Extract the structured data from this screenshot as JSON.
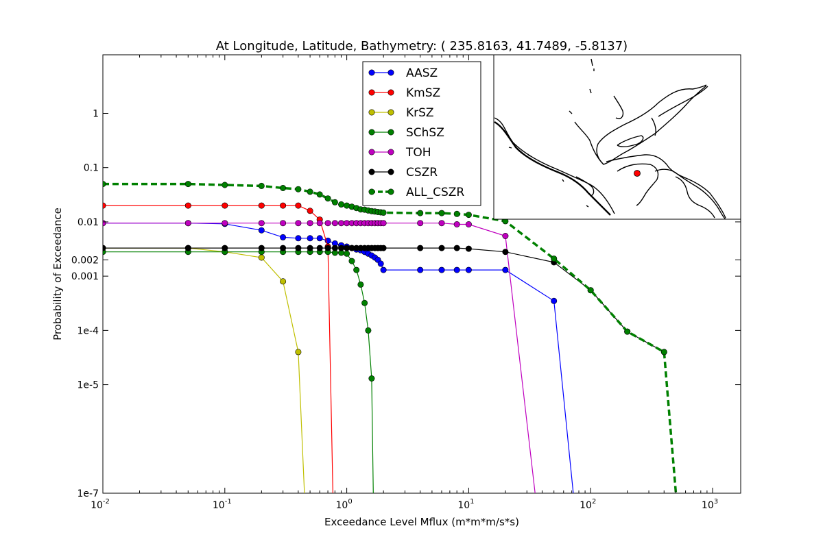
{
  "chart_data": {
    "type": "line",
    "title": "At Longitude, Latitude, Bathymetry:  ( 235.8163,  41.7489,  -5.8137)",
    "xlabel": "Exceedance Level Mflux (m*m*m/s*s)",
    "ylabel": "Probability of Exceedance",
    "xscale": "log",
    "yscale": "log",
    "xlim": [
      0.01,
      1700
    ],
    "ylim": [
      1e-07,
      12
    ],
    "x_ticks": [
      {
        "value": 0.01,
        "base": "10",
        "exp": "-2"
      },
      {
        "value": 0.1,
        "base": "10",
        "exp": "-1"
      },
      {
        "value": 1,
        "base": "10",
        "exp": "0"
      },
      {
        "value": 10,
        "base": "10",
        "exp": "1"
      },
      {
        "value": 100,
        "base": "10",
        "exp": "2"
      },
      {
        "value": 1000,
        "base": "10",
        "exp": "3"
      }
    ],
    "y_ticks": [
      {
        "value": 1e-07,
        "label": "1e-7"
      },
      {
        "value": 1e-05,
        "label": "1e-5"
      },
      {
        "value": 0.0001,
        "label": "1e-4"
      },
      {
        "value": 0.001,
        "label": "0.001"
      },
      {
        "value": 0.002,
        "label": "0.002"
      },
      {
        "value": 0.01,
        "label": "0.01"
      },
      {
        "value": 0.1,
        "label": "0.1"
      },
      {
        "value": 1,
        "label": "1"
      }
    ],
    "grid": false,
    "legend_position": "top-center",
    "series": [
      {
        "name": "AASZ",
        "color": "#0000ff",
        "dashed": false,
        "points": [
          [
            0.01,
            0.0095
          ],
          [
            0.05,
            0.0095
          ],
          [
            0.1,
            0.0092
          ],
          [
            0.2,
            0.007
          ],
          [
            0.3,
            0.0052
          ],
          [
            0.4,
            0.005
          ],
          [
            0.5,
            0.005
          ],
          [
            0.6,
            0.005
          ],
          [
            0.7,
            0.0045
          ],
          [
            0.8,
            0.004
          ],
          [
            0.9,
            0.0037
          ],
          [
            1.0,
            0.0035
          ],
          [
            1.1,
            0.0033
          ],
          [
            1.2,
            0.0031
          ],
          [
            1.3,
            0.003
          ],
          [
            1.4,
            0.0028
          ],
          [
            1.5,
            0.0026
          ],
          [
            1.6,
            0.0024
          ],
          [
            1.7,
            0.0022
          ],
          [
            1.8,
            0.002
          ],
          [
            1.9,
            0.0017
          ],
          [
            2,
            0.0013
          ],
          [
            4,
            0.0013
          ],
          [
            6,
            0.0013
          ],
          [
            8,
            0.0013
          ],
          [
            10,
            0.0013
          ],
          [
            20,
            0.0013
          ],
          [
            50,
            0.00035
          ],
          [
            72,
            1e-07
          ]
        ]
      },
      {
        "name": "KmSZ",
        "color": "#ff0000",
        "dashed": false,
        "points": [
          [
            0.01,
            0.02
          ],
          [
            0.05,
            0.02
          ],
          [
            0.1,
            0.02
          ],
          [
            0.2,
            0.02
          ],
          [
            0.3,
            0.02
          ],
          [
            0.4,
            0.02
          ],
          [
            0.5,
            0.016
          ],
          [
            0.6,
            0.011
          ],
          [
            0.7,
            0.0035
          ],
          [
            0.77,
            1e-07
          ]
        ]
      },
      {
        "name": "KrSZ",
        "color": "#bfbf00",
        "dashed": false,
        "points": [
          [
            0.01,
            0.0033
          ],
          [
            0.05,
            0.0033
          ],
          [
            0.1,
            0.0028
          ],
          [
            0.2,
            0.0022
          ],
          [
            0.3,
            0.0008
          ],
          [
            0.4,
            4e-05
          ],
          [
            0.45,
            1e-07
          ]
        ]
      },
      {
        "name": "SChSZ",
        "color": "#008000",
        "dashed": false,
        "points": [
          [
            0.01,
            0.0028
          ],
          [
            0.05,
            0.0028
          ],
          [
            0.1,
            0.0028
          ],
          [
            0.2,
            0.0028
          ],
          [
            0.3,
            0.0028
          ],
          [
            0.4,
            0.0028
          ],
          [
            0.5,
            0.0028
          ],
          [
            0.6,
            0.0028
          ],
          [
            0.7,
            0.0028
          ],
          [
            0.8,
            0.0027
          ],
          [
            0.9,
            0.0027
          ],
          [
            1.0,
            0.0026
          ],
          [
            1.1,
            0.0019
          ],
          [
            1.2,
            0.0013
          ],
          [
            1.3,
            0.0007
          ],
          [
            1.4,
            0.00032
          ],
          [
            1.5,
            0.0001
          ],
          [
            1.6,
            1.3e-05
          ],
          [
            1.65,
            1e-07
          ]
        ]
      },
      {
        "name": "TOH",
        "color": "#bf00bf",
        "dashed": false,
        "points": [
          [
            0.01,
            0.0095
          ],
          [
            0.05,
            0.0095
          ],
          [
            0.1,
            0.0095
          ],
          [
            0.2,
            0.0095
          ],
          [
            0.3,
            0.0095
          ],
          [
            0.4,
            0.0095
          ],
          [
            0.5,
            0.0095
          ],
          [
            0.6,
            0.0095
          ],
          [
            0.7,
            0.0095
          ],
          [
            0.8,
            0.0095
          ],
          [
            0.9,
            0.0095
          ],
          [
            1.0,
            0.0095
          ],
          [
            1.1,
            0.0095
          ],
          [
            1.2,
            0.0095
          ],
          [
            1.3,
            0.0095
          ],
          [
            1.4,
            0.0095
          ],
          [
            1.5,
            0.0095
          ],
          [
            1.6,
            0.0095
          ],
          [
            1.7,
            0.0095
          ],
          [
            1.8,
            0.0095
          ],
          [
            1.9,
            0.0095
          ],
          [
            2,
            0.0095
          ],
          [
            4,
            0.0095
          ],
          [
            6,
            0.0095
          ],
          [
            8,
            0.009
          ],
          [
            10,
            0.009
          ],
          [
            20,
            0.0055
          ],
          [
            35,
            1e-07
          ]
        ]
      },
      {
        "name": "CSZR",
        "color": "#000000",
        "dashed": false,
        "points": [
          [
            0.01,
            0.0033
          ],
          [
            0.05,
            0.0033
          ],
          [
            0.1,
            0.0033
          ],
          [
            0.2,
            0.0033
          ],
          [
            0.3,
            0.0033
          ],
          [
            0.4,
            0.0033
          ],
          [
            0.5,
            0.0033
          ],
          [
            0.6,
            0.0033
          ],
          [
            0.7,
            0.0033
          ],
          [
            0.8,
            0.0033
          ],
          [
            0.9,
            0.0033
          ],
          [
            1.0,
            0.0033
          ],
          [
            1.1,
            0.0033
          ],
          [
            1.2,
            0.0033
          ],
          [
            1.3,
            0.0033
          ],
          [
            1.4,
            0.0033
          ],
          [
            1.5,
            0.0033
          ],
          [
            1.6,
            0.0033
          ],
          [
            1.7,
            0.0033
          ],
          [
            1.8,
            0.0033
          ],
          [
            1.9,
            0.0033
          ],
          [
            2,
            0.0033
          ],
          [
            4,
            0.0033
          ],
          [
            6,
            0.0033
          ],
          [
            8,
            0.0033
          ],
          [
            10,
            0.0032
          ],
          [
            20,
            0.0028
          ],
          [
            50,
            0.0018
          ],
          [
            100,
            0.00055
          ],
          [
            200,
            9.5e-05
          ],
          [
            400,
            4e-05
          ]
        ]
      },
      {
        "name": "ALL_CSZR",
        "color": "#008000",
        "dashed": true,
        "points": [
          [
            0.01,
            0.05
          ],
          [
            0.05,
            0.05
          ],
          [
            0.1,
            0.048
          ],
          [
            0.2,
            0.046
          ],
          [
            0.3,
            0.042
          ],
          [
            0.4,
            0.04
          ],
          [
            0.5,
            0.036
          ],
          [
            0.6,
            0.032
          ],
          [
            0.7,
            0.027
          ],
          [
            0.8,
            0.023
          ],
          [
            0.9,
            0.021
          ],
          [
            1.0,
            0.02
          ],
          [
            1.1,
            0.019
          ],
          [
            1.2,
            0.018
          ],
          [
            1.3,
            0.017
          ],
          [
            1.4,
            0.0168
          ],
          [
            1.5,
            0.0162
          ],
          [
            1.6,
            0.0158
          ],
          [
            1.7,
            0.0155
          ],
          [
            1.8,
            0.0152
          ],
          [
            1.9,
            0.015
          ],
          [
            2,
            0.0148
          ],
          [
            4,
            0.0145
          ],
          [
            6,
            0.0145
          ],
          [
            8,
            0.014
          ],
          [
            10,
            0.0135
          ],
          [
            20,
            0.0103
          ],
          [
            50,
            0.0021
          ],
          [
            100,
            0.00055
          ],
          [
            200,
            9.5e-05
          ],
          [
            400,
            4e-05
          ],
          [
            500,
            1e-07
          ]
        ]
      }
    ],
    "inset_map": {
      "marker_color": "#ff0000",
      "description_hidden": true
    }
  }
}
